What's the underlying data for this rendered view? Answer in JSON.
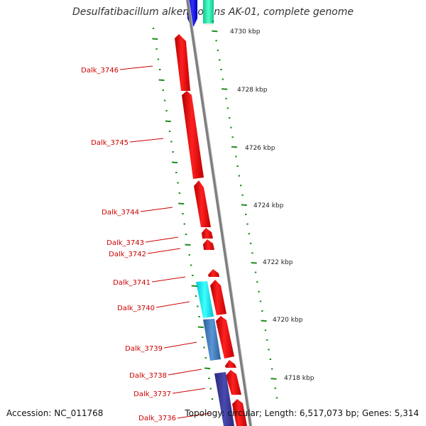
{
  "title": "Desulfatibacillum alkenivorans AK-01, complete genome",
  "accession_text": "Accession: NC_011768",
  "topology_text": "Topology: circular; Length: 6,517,073 bp; Genes: 5,314",
  "colors": {
    "backbone": "#7f7f7f",
    "gene_red": "#ff1a1a",
    "gene_blue": "#1a1aff",
    "gene_teal": "#33ffbb",
    "gene_cyan": "#22ffff",
    "gene_steel": "#4a86c8",
    "gene_navy": "#3a3aa0",
    "tick_green": "#1e8c1e",
    "label_red": "#cc0000"
  },
  "genes": [
    {
      "label": "Dalk_3746",
      "color": "gene_red"
    },
    {
      "label": "Dalk_3745",
      "color": "gene_red"
    },
    {
      "label": "Dalk_3744",
      "color": "gene_red"
    },
    {
      "label": "Dalk_3743",
      "color": "gene_red"
    },
    {
      "label": "Dalk_3742",
      "color": "gene_red"
    },
    {
      "label": "Dalk_3741",
      "color": "gene_red"
    },
    {
      "label": "Dalk_3740",
      "color": "gene_red"
    },
    {
      "label": "Dalk_3739",
      "color": "gene_red"
    },
    {
      "label": "Dalk_3738",
      "color": "gene_red"
    },
    {
      "label": "Dalk_3737",
      "color": "gene_red"
    },
    {
      "label": "Dalk_3736",
      "color": "gene_red"
    }
  ],
  "ruler_labels": [
    "4730 kbp",
    "4728 kbp",
    "4726 kbp",
    "4724 kbp",
    "4722 kbp",
    "4720 kbp",
    "4718 kbp"
  ]
}
